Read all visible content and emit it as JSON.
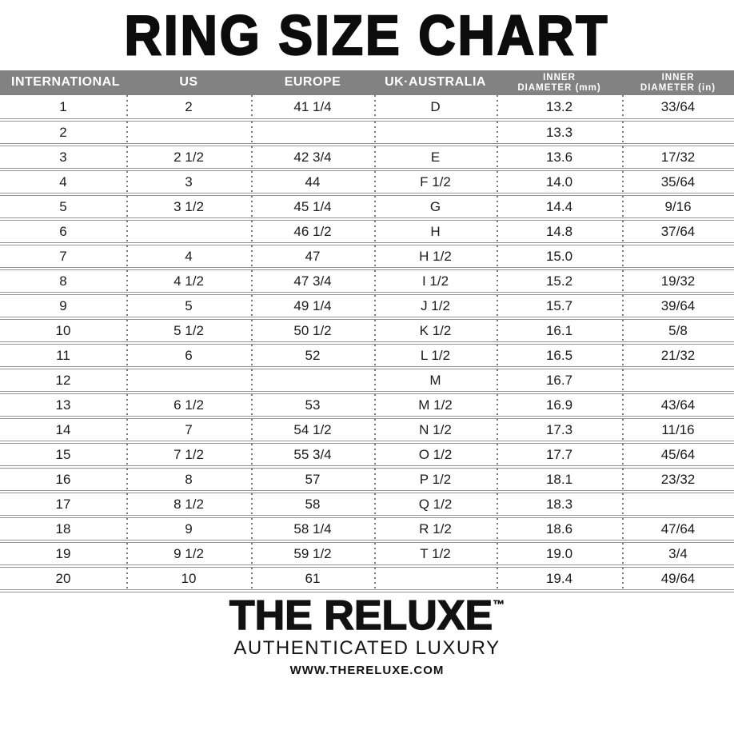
{
  "title": "RING SIZE CHART",
  "chart_data": {
    "type": "table",
    "title": "RING SIZE CHART",
    "columns": [
      {
        "key": "international",
        "label": "INTERNATIONAL"
      },
      {
        "key": "us",
        "label": "US"
      },
      {
        "key": "europe",
        "label": "EUROPE"
      },
      {
        "key": "uk-australia",
        "label": "UK·AUSTRALIA"
      },
      {
        "key": "inner-diameter-mm",
        "label": "INNER\nDIAMETER (mm)"
      },
      {
        "key": "inner-diameter-in",
        "label": "INNER\nDIAMETER (in)"
      }
    ],
    "rows": [
      [
        "1",
        "2",
        "41 1/4",
        "D",
        "13.2",
        "33/64"
      ],
      [
        "2",
        "",
        "",
        "",
        "13.3",
        ""
      ],
      [
        "3",
        "2 1/2",
        "42 3/4",
        "E",
        "13.6",
        "17/32"
      ],
      [
        "4",
        "3",
        "44",
        "F 1/2",
        "14.0",
        "35/64"
      ],
      [
        "5",
        "3 1/2",
        "45 1/4",
        "G",
        "14.4",
        "9/16"
      ],
      [
        "6",
        "",
        "46 1/2",
        "H",
        "14.8",
        "37/64"
      ],
      [
        "7",
        "4",
        "47",
        "H 1/2",
        "15.0",
        ""
      ],
      [
        "8",
        "4 1/2",
        "47 3/4",
        "I 1/2",
        "15.2",
        "19/32"
      ],
      [
        "9",
        "5",
        "49 1/4",
        "J 1/2",
        "15.7",
        "39/64"
      ],
      [
        "10",
        "5 1/2",
        "50 1/2",
        "K 1/2",
        "16.1",
        "5/8"
      ],
      [
        "11",
        "6",
        "52",
        "L 1/2",
        "16.5",
        "21/32"
      ],
      [
        "12",
        "",
        "",
        "M",
        "16.7",
        ""
      ],
      [
        "13",
        "6 1/2",
        "53",
        "M 1/2",
        "16.9",
        "43/64"
      ],
      [
        "14",
        "7",
        "54 1/2",
        "N 1/2",
        "17.3",
        "11/16"
      ],
      [
        "15",
        "7 1/2",
        "55 3/4",
        "O 1/2",
        "17.7",
        "45/64"
      ],
      [
        "16",
        "8",
        "57",
        "P 1/2",
        "18.1",
        "23/32"
      ],
      [
        "17",
        "8 1/2",
        "58",
        "Q 1/2",
        "18.3",
        ""
      ],
      [
        "18",
        "9",
        "58 1/4",
        "R 1/2",
        "18.6",
        "47/64"
      ],
      [
        "19",
        "9 1/2",
        "59 1/2",
        "T 1/2",
        "19.0",
        "3/4"
      ],
      [
        "20",
        "10",
        "61",
        "",
        "19.4",
        "49/64"
      ]
    ]
  },
  "footer": {
    "brand": "THE RELUXE",
    "trademark": "™",
    "tagline": "AUTHENTICATED LUXURY",
    "website": "WWW.THERELUXE.COM"
  },
  "colors": {
    "header_bg": "#828282",
    "header_text": "#ffffff",
    "body_text": "#1b1b1b",
    "row_divider": "#949494",
    "column_dots": "#7a7a7a",
    "title_text": "#0c0c0c"
  }
}
